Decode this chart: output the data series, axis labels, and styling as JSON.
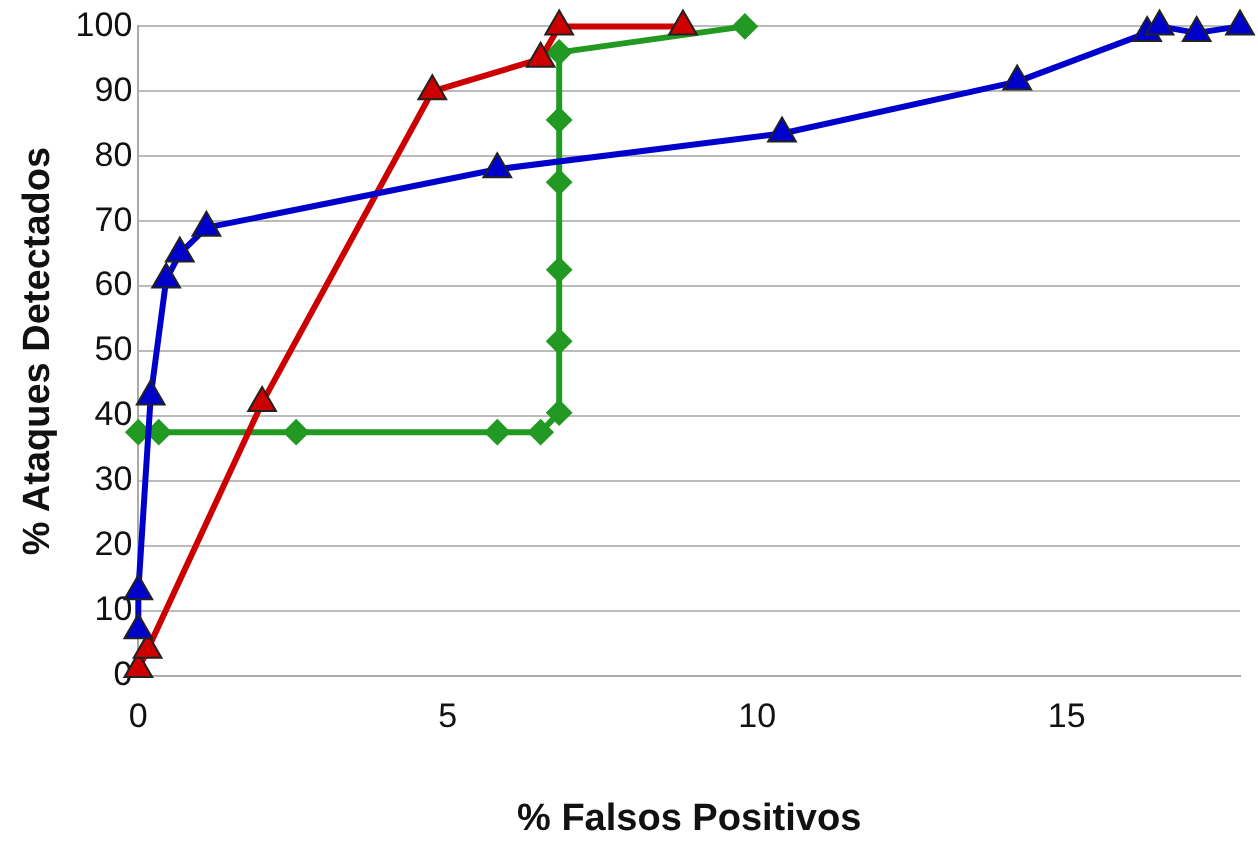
{
  "chart_data": {
    "type": "line",
    "xlabel": "% Falsos Positivos",
    "ylabel": "% Ataques Detectados",
    "xlim": [
      0,
      17.8
    ],
    "xticks": [
      0,
      5,
      10,
      15
    ],
    "ylim": [
      0,
      100
    ],
    "yticks": [
      0,
      10,
      20,
      30,
      40,
      50,
      60,
      70,
      80,
      90,
      100
    ],
    "grid": "y",
    "legend": false,
    "series": [
      {
        "color": "#0000cc",
        "marker": "triangle",
        "x": [
          0,
          0,
          0.2,
          0.45,
          0.67,
          1.1,
          5.8,
          10.4,
          14.2,
          16.3,
          16.5,
          17.1,
          17.8
        ],
        "values": [
          7,
          13,
          43,
          61,
          65,
          69,
          78,
          83.5,
          91.5,
          99,
          100,
          99,
          100
        ]
      },
      {
        "color": "#cc0000",
        "marker": "triangle",
        "x": [
          0,
          0.15,
          2.0,
          4.75,
          6.5,
          6.8,
          8.8
        ],
        "values": [
          1,
          4,
          42,
          90,
          95,
          100,
          100
        ]
      },
      {
        "color": "#229922",
        "marker": "diamond",
        "x": [
          0,
          0.33,
          2.55,
          5.8,
          6.5,
          6.8,
          6.8,
          6.8,
          6.8,
          6.8,
          6.8,
          9.8
        ],
        "values": [
          37.5,
          37.5,
          37.5,
          37.5,
          37.5,
          40.5,
          51.5,
          62.5,
          76,
          85.6,
          96,
          100
        ]
      }
    ]
  }
}
